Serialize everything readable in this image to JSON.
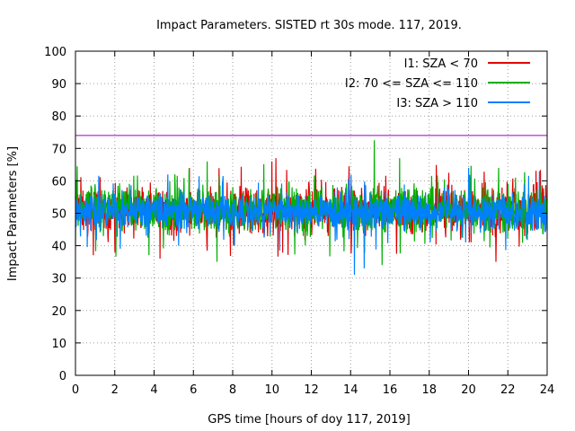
{
  "chart_data": {
    "type": "line",
    "title": "Impact Parameters. SISTED rt 30s mode. 117, 2019.",
    "xlabel": "GPS time [hours of doy 117, 2019]",
    "ylabel": "Impact Parameters [%]",
    "xlim": [
      0,
      24
    ],
    "ylim": [
      0,
      100
    ],
    "grid": true,
    "legend_position": "top-right",
    "x_ticks": [
      0,
      2,
      4,
      6,
      8,
      10,
      12,
      14,
      16,
      18,
      20,
      22,
      24
    ],
    "y_ticks": [
      0,
      10,
      20,
      30,
      40,
      50,
      60,
      70,
      80,
      90,
      100
    ],
    "series": [
      {
        "name": "I1: SZA < 70",
        "color": "#e00000",
        "mean": 51,
        "typical_range": [
          42,
          60
        ],
        "extremes": [
          {
            "x": 4.3,
            "y": 36
          },
          {
            "x": 10.2,
            "y": 67
          },
          {
            "x": 10.0,
            "y": 66
          },
          {
            "x": 21.4,
            "y": 35
          },
          {
            "x": 5.8,
            "y": 64
          },
          {
            "x": 2.0,
            "y": 38
          }
        ]
      },
      {
        "name": "I2: 70 <= SZA <= 110",
        "color": "#00b000",
        "mean": 51,
        "typical_range": [
          42,
          60
        ],
        "extremes": [
          {
            "x": 15.2,
            "y": 72.5
          },
          {
            "x": 7.2,
            "y": 35
          },
          {
            "x": 6.7,
            "y": 66
          },
          {
            "x": 15.6,
            "y": 34
          },
          {
            "x": 16.5,
            "y": 67
          },
          {
            "x": 0.0,
            "y": 40
          }
        ]
      },
      {
        "name": "I3: SZA > 110",
        "color": "#0080ff",
        "mean": 50.5,
        "typical_range": [
          43,
          58
        ],
        "extremes": [
          {
            "x": 14.2,
            "y": 31
          },
          {
            "x": 14.7,
            "y": 33
          },
          {
            "x": 4.7,
            "y": 62
          },
          {
            "x": 23.6,
            "y": 63
          },
          {
            "x": 20.0,
            "y": 64
          },
          {
            "x": 8.1,
            "y": 40
          }
        ]
      }
    ],
    "reference_lines": [
      {
        "y": 74,
        "color": "#9400d3"
      }
    ]
  }
}
